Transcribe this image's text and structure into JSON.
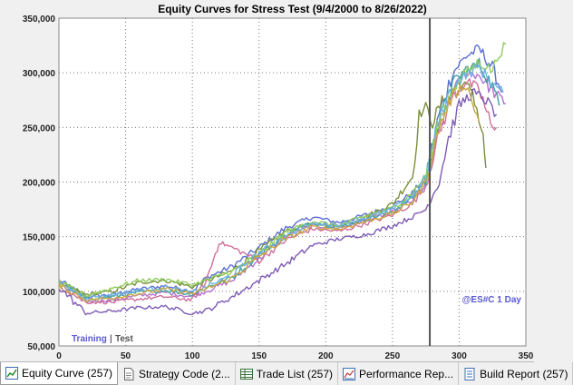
{
  "chart_data": {
    "type": "line",
    "title": "Equity Curves for Stress Test (9/4/2000 to 8/26/2022)",
    "xlim": [
      0,
      350
    ],
    "ylim": [
      50000,
      350000
    ],
    "x_ticks": [
      0,
      50,
      100,
      150,
      200,
      250,
      300,
      350
    ],
    "x_tick_labels": [
      "0",
      "50",
      "100",
      "150",
      "200",
      "250",
      "300",
      "350"
    ],
    "y_ticks": [
      50000,
      100000,
      150000,
      200000,
      250000,
      300000,
      350000
    ],
    "y_tick_labels": [
      "50,000",
      "100,000",
      "150,000",
      "200,000",
      "250,000",
      "300,000",
      "350,000"
    ],
    "grid": true,
    "divider_x": 278,
    "annotations": {
      "training": "Training",
      "separator": "|",
      "test": "Test",
      "symbol": "@ES#C 1 Day"
    },
    "series": [
      {
        "color": "#5b6fd0",
        "points": [
          [
            0,
            110000
          ],
          [
            20,
            95000
          ],
          [
            40,
            97000
          ],
          [
            60,
            102000
          ],
          [
            80,
            105000
          ],
          [
            100,
            100000
          ],
          [
            110,
            112000
          ],
          [
            130,
            123000
          ],
          [
            150,
            140000
          ],
          [
            170,
            158000
          ],
          [
            190,
            168000
          ],
          [
            210,
            163000
          ],
          [
            230,
            170000
          ],
          [
            250,
            178000
          ],
          [
            265,
            190000
          ],
          [
            275,
            205000
          ],
          [
            285,
            262000
          ],
          [
            295,
            300000
          ],
          [
            305,
            315000
          ],
          [
            315,
            322000
          ],
          [
            325,
            305000
          ],
          [
            332,
            282000
          ]
        ]
      },
      {
        "color": "#7b8f3a",
        "points": [
          [
            0,
            108000
          ],
          [
            20,
            97000
          ],
          [
            40,
            100000
          ],
          [
            60,
            108000
          ],
          [
            80,
            110000
          ],
          [
            100,
            104000
          ],
          [
            110,
            109000
          ],
          [
            130,
            119000
          ],
          [
            150,
            137000
          ],
          [
            170,
            155000
          ],
          [
            190,
            162000
          ],
          [
            210,
            160000
          ],
          [
            230,
            168000
          ],
          [
            250,
            180000
          ],
          [
            265,
            205000
          ],
          [
            270,
            262000
          ],
          [
            275,
            268000
          ],
          [
            280,
            255000
          ],
          [
            290,
            280000
          ],
          [
            300,
            290000
          ],
          [
            310,
            285000
          ],
          [
            318,
            240000
          ],
          [
            320,
            213000
          ]
        ]
      },
      {
        "color": "#b36fd0",
        "points": [
          [
            0,
            107000
          ],
          [
            20,
            91000
          ],
          [
            40,
            92000
          ],
          [
            60,
            96000
          ],
          [
            80,
            99000
          ],
          [
            100,
            95000
          ],
          [
            110,
            100000
          ],
          [
            130,
            110000
          ],
          [
            150,
            130000
          ],
          [
            170,
            150000
          ],
          [
            190,
            160000
          ],
          [
            210,
            158000
          ],
          [
            230,
            165000
          ],
          [
            250,
            172000
          ],
          [
            265,
            183000
          ],
          [
            275,
            198000
          ],
          [
            285,
            248000
          ],
          [
            295,
            282000
          ],
          [
            305,
            300000
          ],
          [
            315,
            298000
          ],
          [
            325,
            283000
          ],
          [
            335,
            272000
          ]
        ]
      },
      {
        "color": "#40a0a0",
        "points": [
          [
            0,
            109000
          ],
          [
            20,
            93000
          ],
          [
            40,
            95000
          ],
          [
            60,
            99000
          ],
          [
            80,
            101000
          ],
          [
            100,
            97000
          ],
          [
            110,
            103000
          ],
          [
            130,
            113000
          ],
          [
            150,
            133000
          ],
          [
            170,
            152000
          ],
          [
            190,
            163000
          ],
          [
            210,
            159000
          ],
          [
            230,
            166000
          ],
          [
            250,
            173000
          ],
          [
            265,
            186000
          ],
          [
            275,
            202000
          ],
          [
            285,
            255000
          ],
          [
            295,
            290000
          ],
          [
            305,
            303000
          ],
          [
            315,
            308000
          ],
          [
            325,
            288000
          ],
          [
            330,
            270000
          ]
        ]
      },
      {
        "color": "#d06f9b",
        "points": [
          [
            0,
            106000
          ],
          [
            20,
            90000
          ],
          [
            40,
            90000
          ],
          [
            60,
            93000
          ],
          [
            80,
            95000
          ],
          [
            100,
            92000
          ],
          [
            110,
            108000
          ],
          [
            120,
            145000
          ],
          [
            130,
            140000
          ],
          [
            150,
            128000
          ],
          [
            170,
            147000
          ],
          [
            190,
            157000
          ],
          [
            210,
            155000
          ],
          [
            230,
            162000
          ],
          [
            250,
            170000
          ],
          [
            265,
            180000
          ],
          [
            275,
            196000
          ],
          [
            285,
            245000
          ],
          [
            295,
            278000
          ],
          [
            305,
            292000
          ],
          [
            315,
            285000
          ],
          [
            325,
            248000
          ],
          [
            328,
            250000
          ]
        ]
      },
      {
        "color": "#7e5bb6",
        "points": [
          [
            0,
            104000
          ],
          [
            20,
            80000
          ],
          [
            40,
            82000
          ],
          [
            60,
            85000
          ],
          [
            80,
            86000
          ],
          [
            100,
            80000
          ],
          [
            110,
            82000
          ],
          [
            130,
            95000
          ],
          [
            150,
            110000
          ],
          [
            170,
            125000
          ],
          [
            190,
            142000
          ],
          [
            210,
            148000
          ],
          [
            230,
            152000
          ],
          [
            250,
            160000
          ],
          [
            265,
            168000
          ],
          [
            275,
            175000
          ],
          [
            285,
            200000
          ],
          [
            292,
            240000
          ],
          [
            300,
            270000
          ],
          [
            310,
            282000
          ],
          [
            320,
            275000
          ],
          [
            328,
            262000
          ]
        ]
      },
      {
        "color": "#8fcd5c",
        "points": [
          [
            0,
            108000
          ],
          [
            20,
            96000
          ],
          [
            40,
            103000
          ],
          [
            60,
            110000
          ],
          [
            80,
            111000
          ],
          [
            100,
            106000
          ],
          [
            110,
            110000
          ],
          [
            130,
            118000
          ],
          [
            150,
            134000
          ],
          [
            170,
            154000
          ],
          [
            190,
            164000
          ],
          [
            210,
            160000
          ],
          [
            230,
            169000
          ],
          [
            250,
            176000
          ],
          [
            265,
            190000
          ],
          [
            275,
            206000
          ],
          [
            285,
            255000
          ],
          [
            295,
            285000
          ],
          [
            305,
            300000
          ],
          [
            315,
            310000
          ],
          [
            325,
            302000
          ],
          [
            330,
            318000
          ],
          [
            335,
            326000
          ]
        ]
      },
      {
        "color": "#6fb0e0",
        "points": [
          [
            0,
            107000
          ],
          [
            20,
            94000
          ],
          [
            40,
            97000
          ],
          [
            60,
            101000
          ],
          [
            80,
            104000
          ],
          [
            100,
            99000
          ],
          [
            110,
            104000
          ],
          [
            130,
            115000
          ],
          [
            150,
            135000
          ],
          [
            170,
            150000
          ],
          [
            190,
            162000
          ],
          [
            210,
            161000
          ],
          [
            230,
            167000
          ],
          [
            250,
            175000
          ],
          [
            265,
            187000
          ],
          [
            275,
            204000
          ],
          [
            285,
            258000
          ],
          [
            295,
            288000
          ],
          [
            305,
            298000
          ],
          [
            315,
            305000
          ],
          [
            325,
            290000
          ],
          [
            333,
            282000
          ]
        ]
      },
      {
        "color": "#c8a840",
        "points": [
          [
            0,
            106000
          ],
          [
            20,
            92000
          ],
          [
            40,
            94000
          ],
          [
            60,
            98000
          ],
          [
            80,
            102000
          ],
          [
            100,
            98000
          ],
          [
            110,
            102000
          ],
          [
            130,
            112000
          ],
          [
            150,
            132000
          ],
          [
            170,
            148000
          ],
          [
            190,
            159000
          ],
          [
            210,
            157000
          ],
          [
            230,
            164000
          ],
          [
            250,
            171000
          ],
          [
            265,
            182000
          ],
          [
            275,
            200000
          ],
          [
            285,
            250000
          ],
          [
            295,
            280000
          ],
          [
            305,
            290000
          ],
          [
            310,
            272000
          ],
          [
            315,
            255000
          ]
        ]
      }
    ]
  },
  "tabs": [
    {
      "label": "Equity Curve (257)",
      "icon": "equity-curve-icon"
    },
    {
      "label": "Strategy Code (2...",
      "icon": "strategy-code-icon"
    },
    {
      "label": "Trade List (257)",
      "icon": "trade-list-icon"
    },
    {
      "label": "Performance Rep...",
      "icon": "performance-report-icon"
    },
    {
      "label": "Build Report (257)",
      "icon": "build-report-icon"
    }
  ]
}
